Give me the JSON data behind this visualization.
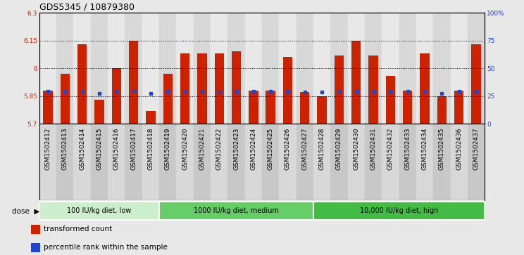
{
  "title": "GDS5345 / 10879380",
  "samples": [
    "GSM1502412",
    "GSM1502413",
    "GSM1502414",
    "GSM1502415",
    "GSM1502416",
    "GSM1502417",
    "GSM1502418",
    "GSM1502419",
    "GSM1502420",
    "GSM1502421",
    "GSM1502422",
    "GSM1502423",
    "GSM1502424",
    "GSM1502425",
    "GSM1502426",
    "GSM1502427",
    "GSM1502428",
    "GSM1502429",
    "GSM1502430",
    "GSM1502431",
    "GSM1502432",
    "GSM1502433",
    "GSM1502434",
    "GSM1502435",
    "GSM1502436",
    "GSM1502437"
  ],
  "bar_values": [
    5.88,
    5.97,
    6.13,
    5.83,
    6.0,
    6.15,
    5.77,
    5.97,
    6.08,
    6.08,
    6.08,
    6.09,
    5.88,
    5.88,
    6.06,
    5.87,
    5.85,
    6.07,
    6.15,
    6.07,
    5.96,
    5.88,
    6.08,
    5.85,
    5.88,
    6.13
  ],
  "percentile_values": [
    5.875,
    5.875,
    5.875,
    5.862,
    5.875,
    5.877,
    5.862,
    5.875,
    5.876,
    5.876,
    5.873,
    5.876,
    5.875,
    5.875,
    5.875,
    5.873,
    5.873,
    5.875,
    5.876,
    5.876,
    5.875,
    5.875,
    5.876,
    5.862,
    5.875,
    5.876
  ],
  "ymin": 5.7,
  "ymax": 6.3,
  "yticks": [
    5.7,
    5.85,
    6.0,
    6.15,
    6.3
  ],
  "ytick_labels": [
    "5.7",
    "5.85",
    "6",
    "6.15",
    "6.3"
  ],
  "right_yticks": [
    0,
    25,
    50,
    75,
    100
  ],
  "right_ytick_labels": [
    "0",
    "25",
    "50",
    "75",
    "100%"
  ],
  "bar_color": "#cc2200",
  "dot_color": "#2244cc",
  "bar_width": 0.55,
  "groups": [
    {
      "label": "100 IU/kg diet, low",
      "start": 0,
      "end": 7,
      "color": "#cceecc"
    },
    {
      "label": "1000 IU/kg diet, medium",
      "start": 7,
      "end": 16,
      "color": "#66cc66"
    },
    {
      "label": "10,000 IU/kg diet, high",
      "start": 16,
      "end": 26,
      "color": "#44bb44"
    }
  ],
  "dose_label": "dose",
  "legend_items": [
    {
      "label": "transformed count",
      "color": "#cc2200"
    },
    {
      "label": "percentile rank within the sample",
      "color": "#2244cc"
    }
  ],
  "bg_color": "#e8e8e8",
  "plot_bg_color": "#ffffff",
  "title_fontsize": 9,
  "tick_fontsize": 6.5,
  "label_fontsize": 7.5
}
